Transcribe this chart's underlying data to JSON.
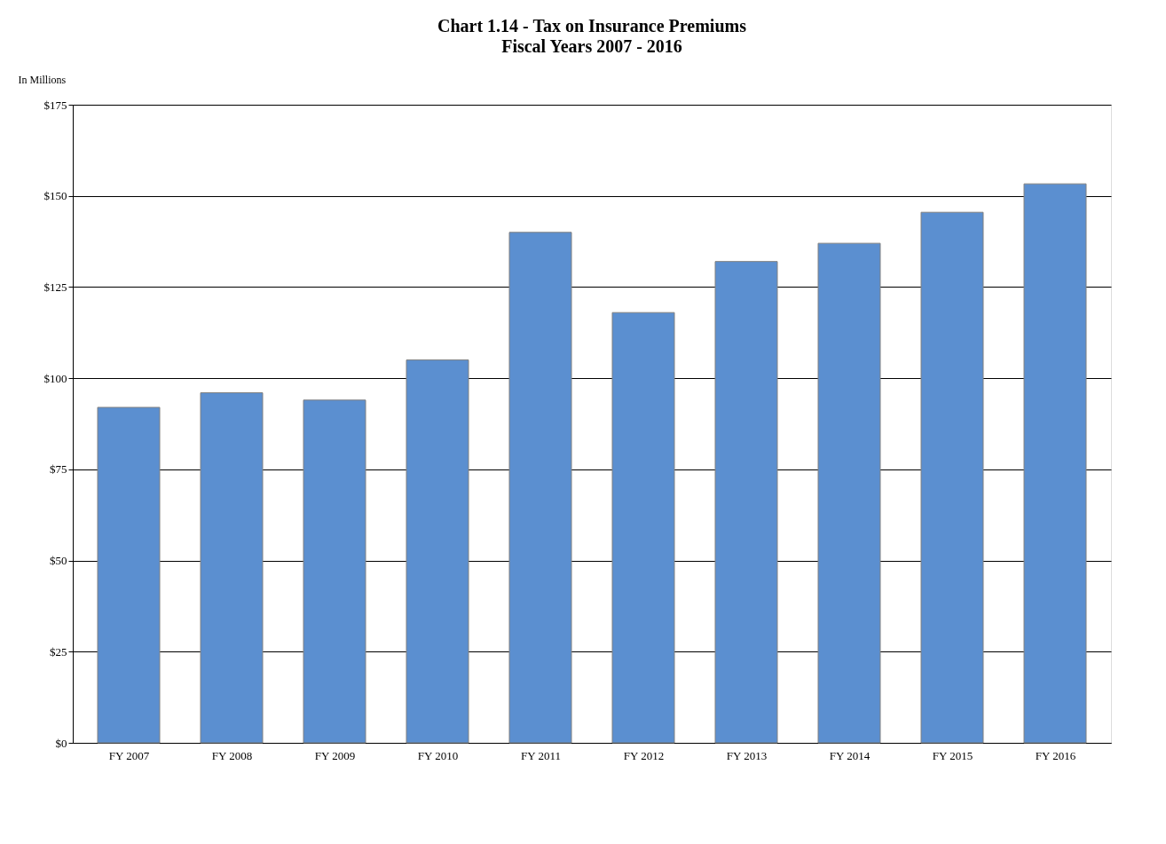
{
  "chart_data": {
    "type": "bar",
    "title": "Chart 1.14 - Tax on Insurance Premiums",
    "subtitle": "Fiscal Years 2007 - 2016",
    "ylabel": "In Millions",
    "categories": [
      "FY 2007",
      "FY 2008",
      "FY 2009",
      "FY 2010",
      "FY 2011",
      "FY 2012",
      "FY 2013",
      "FY 2014",
      "FY 2015",
      "FY 2016"
    ],
    "values": [
      92,
      96,
      94,
      105,
      140,
      118,
      132,
      137,
      145.5,
      153.3
    ],
    "color": "#5b8fd0",
    "ylim": [
      0,
      175
    ],
    "yticks": [
      {
        "value": 0,
        "label": "$0"
      },
      {
        "value": 25,
        "label": "$25"
      },
      {
        "value": 50,
        "label": "$50"
      },
      {
        "value": 75,
        "label": "$75"
      },
      {
        "value": 100,
        "label": "$100"
      },
      {
        "value": 125,
        "label": "$125"
      },
      {
        "value": 150,
        "label": "$150"
      },
      {
        "value": 175,
        "label": "$175"
      }
    ],
    "grid": "y"
  }
}
